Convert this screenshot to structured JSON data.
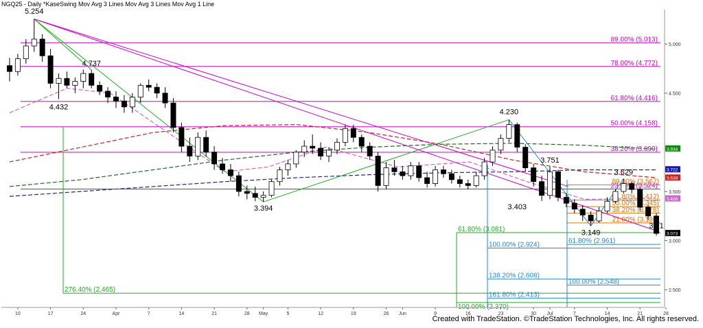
{
  "header": {
    "title": "NGQ25 - Daily  *KaseSwing  Mov Avg 3 Lines  Mov Avg 3 Lines  Mov Avg 1 Line"
  },
  "credit": "Created with TradeStation. ©TradeStation Technologies, Inc. All rights reserved.",
  "colors": {
    "up_candle": "#ffffff",
    "down_candle": "#000000",
    "fib_magenta": "#cc00cc",
    "fib_orange": "#e07000",
    "fib_green": "#22aa22",
    "fib_cyan": "#2288cc",
    "ma_red": "#cc2222",
    "ma_green": "#226622",
    "ma_blue": "#222288"
  },
  "chart_data": {
    "type": "candlestick",
    "ylim": [
      2.32,
      5.35
    ],
    "x_tick_labels": [
      "10",
      "17",
      "24",
      "Apr",
      "7",
      "14",
      "21",
      "28",
      "May",
      "5",
      "12",
      "19",
      "26",
      "Jun",
      "9",
      "16",
      "23",
      "30",
      "Jul",
      "7",
      "14",
      "21",
      "28"
    ],
    "price_axis_labels": [
      "5.000",
      "4.500",
      "3.500",
      "3.000",
      "2.500"
    ],
    "price_axis_values": [
      5.0,
      4.5,
      3.5,
      3.0,
      2.5
    ],
    "price_tags": [
      {
        "label": "3.934",
        "value": 3.934,
        "color": "#118811"
      },
      {
        "label": "3.722",
        "value": 3.722,
        "color": "#1a1aaa"
      },
      {
        "label": "3.638",
        "value": 3.638,
        "color": "#cc2222"
      },
      {
        "label": "3.426",
        "value": 3.426,
        "color": "#cc66cc"
      },
      {
        "label": "3.073",
        "value": 3.073,
        "color": "#000000"
      }
    ],
    "swing_labels": [
      {
        "text": "5.254",
        "value": 5.254
      },
      {
        "text": "4.737",
        "value": 4.737
      },
      {
        "text": "4.432",
        "value": 4.432
      },
      {
        "text": "3.394",
        "value": 3.394
      },
      {
        "text": "4.230",
        "value": 4.23
      },
      {
        "text": "3.751",
        "value": 3.751
      },
      {
        "text": "3.403",
        "value": 3.403
      },
      {
        "text": "3.149",
        "value": 3.149
      },
      {
        "text": "3.629",
        "value": 3.629
      },
      {
        "text": "3.21",
        "value": 3.21
      }
    ],
    "fib_levels_magenta": [
      {
        "label": "89.00% (5.013)",
        "value": 5.013
      },
      {
        "label": "78.00% (4.772)",
        "value": 4.772
      },
      {
        "label": "61.80% (4.416)",
        "value": 4.416
      },
      {
        "label": "50.00% (4.158)",
        "value": 4.158
      },
      {
        "label": "38.20% (3.899)",
        "value": 3.899
      },
      {
        "label": "23.60% (3.524)",
        "value": 3.524
      }
    ],
    "fib_levels_orange": [
      {
        "label": "89.00% (3.567)",
        "value": 3.567
      },
      {
        "label": "61.80% (3.412)",
        "value": 3.412
      },
      {
        "label": "50.00% (3.345)",
        "value": 3.345
      },
      {
        "label": "38.20% (3.278)",
        "value": 3.278
      },
      {
        "label": "21.00% (3.180)",
        "value": 3.18
      }
    ],
    "fib_levels_green": [
      {
        "label": "61.80% (3.081)",
        "value": 3.081
      },
      {
        "label": "276.40% (2.465)",
        "value": 2.465
      },
      {
        "label": "100.00% (2.370)",
        "value": 2.37
      }
    ],
    "fib_levels_cyan": [
      {
        "label": "100.00% (2.924)",
        "value": 2.924
      },
      {
        "label": "138.20% (2.608)",
        "value": 2.608
      },
      {
        "label": "161.80% (2.413)",
        "value": 2.413
      },
      {
        "label": "61.80% (2.961)",
        "value": 2.961
      },
      {
        "label": "100.00% (2.548)",
        "value": 2.548
      }
    ],
    "candles": [
      [
        4.78,
        4.86,
        4.62,
        4.72
      ],
      [
        4.72,
        4.9,
        4.68,
        4.85
      ],
      [
        4.85,
        5.05,
        4.8,
        4.98
      ],
      [
        4.98,
        5.254,
        4.92,
        5.05
      ],
      [
        5.05,
        5.1,
        4.82,
        4.88
      ],
      [
        4.88,
        4.95,
        4.55,
        4.6
      ],
      [
        4.6,
        4.7,
        4.44,
        4.65
      ],
      [
        4.65,
        4.72,
        4.55,
        4.58
      ],
      [
        4.58,
        4.66,
        4.5,
        4.62
      ],
      [
        4.62,
        4.74,
        4.55,
        4.7
      ],
      [
        4.7,
        4.737,
        4.55,
        4.58
      ],
      [
        4.58,
        4.62,
        4.48,
        4.52
      ],
      [
        4.52,
        4.56,
        4.4,
        4.46
      ],
      [
        4.46,
        4.52,
        4.35,
        4.42
      ],
      [
        4.42,
        4.48,
        4.3,
        4.36
      ],
      [
        4.36,
        4.5,
        4.3,
        4.46
      ],
      [
        4.46,
        4.6,
        4.4,
        4.58
      ],
      [
        4.58,
        4.64,
        4.52,
        4.56
      ],
      [
        4.56,
        4.6,
        4.45,
        4.5
      ],
      [
        4.5,
        4.56,
        4.35,
        4.4
      ],
      [
        4.4,
        4.45,
        4.1,
        4.15
      ],
      [
        4.15,
        4.2,
        3.9,
        3.96
      ],
      [
        3.96,
        4.05,
        3.8,
        3.86
      ],
      [
        3.86,
        4.1,
        3.82,
        4.05
      ],
      [
        4.05,
        4.12,
        3.85,
        3.9
      ],
      [
        3.9,
        3.96,
        3.72,
        3.78
      ],
      [
        3.78,
        3.84,
        3.68,
        3.72
      ],
      [
        3.72,
        3.78,
        3.6,
        3.66
      ],
      [
        3.66,
        3.7,
        3.45,
        3.5
      ],
      [
        3.5,
        3.56,
        3.42,
        3.48
      ],
      [
        3.48,
        3.55,
        3.4,
        3.44
      ],
      [
        3.44,
        3.5,
        3.394,
        3.46
      ],
      [
        3.46,
        3.62,
        3.44,
        3.6
      ],
      [
        3.6,
        3.75,
        3.56,
        3.72
      ],
      [
        3.72,
        3.82,
        3.66,
        3.78
      ],
      [
        3.78,
        3.92,
        3.74,
        3.9
      ],
      [
        3.9,
        4.02,
        3.85,
        3.96
      ],
      [
        3.96,
        4.08,
        3.88,
        3.94
      ],
      [
        3.94,
        4.0,
        3.82,
        3.86
      ],
      [
        3.86,
        3.95,
        3.8,
        3.92
      ],
      [
        3.92,
        4.04,
        3.88,
        4.0
      ],
      [
        4.0,
        4.18,
        3.96,
        4.14
      ],
      [
        4.14,
        4.18,
        4.0,
        4.05
      ],
      [
        4.05,
        4.08,
        3.9,
        3.96
      ],
      [
        3.96,
        4.0,
        3.82,
        3.86
      ],
      [
        3.86,
        3.9,
        3.5,
        3.56
      ],
      [
        3.56,
        3.8,
        3.52,
        3.74
      ],
      [
        3.74,
        3.82,
        3.66,
        3.7
      ],
      [
        3.7,
        3.76,
        3.62,
        3.66
      ],
      [
        3.66,
        3.8,
        3.62,
        3.76
      ],
      [
        3.76,
        3.8,
        3.6,
        3.64
      ],
      [
        3.64,
        3.7,
        3.54,
        3.58
      ],
      [
        3.58,
        3.76,
        3.55,
        3.72
      ],
      [
        3.72,
        3.76,
        3.64,
        3.68
      ],
      [
        3.68,
        3.72,
        3.58,
        3.62
      ],
      [
        3.62,
        3.66,
        3.54,
        3.58
      ],
      [
        3.58,
        3.62,
        3.52,
        3.56
      ],
      [
        3.56,
        3.7,
        3.54,
        3.66
      ],
      [
        3.66,
        3.84,
        3.62,
        3.8
      ],
      [
        3.8,
        3.96,
        3.76,
        3.92
      ],
      [
        3.92,
        4.08,
        3.88,
        4.04
      ],
      [
        4.04,
        4.23,
        4.0,
        4.18
      ],
      [
        4.18,
        4.2,
        3.9,
        3.95
      ],
      [
        3.95,
        3.98,
        3.7,
        3.74
      ],
      [
        3.74,
        3.78,
        3.55,
        3.6
      ],
      [
        3.6,
        3.66,
        3.403,
        3.46
      ],
      [
        3.46,
        3.751,
        3.42,
        3.7
      ],
      [
        3.7,
        3.72,
        3.4,
        3.44
      ],
      [
        3.44,
        3.48,
        3.34,
        3.38
      ],
      [
        3.38,
        3.42,
        3.28,
        3.32
      ],
      [
        3.32,
        3.36,
        3.2,
        3.26
      ],
      [
        3.26,
        3.3,
        3.149,
        3.2
      ],
      [
        3.2,
        3.34,
        3.18,
        3.3
      ],
      [
        3.3,
        3.44,
        3.28,
        3.4
      ],
      [
        3.4,
        3.52,
        3.38,
        3.5
      ],
      [
        3.5,
        3.629,
        3.48,
        3.58
      ],
      [
        3.58,
        3.6,
        3.48,
        3.52
      ],
      [
        3.52,
        3.54,
        3.3,
        3.34
      ],
      [
        3.34,
        3.36,
        3.21,
        3.25
      ],
      [
        3.25,
        3.28,
        3.05,
        3.073
      ]
    ],
    "ma_lines": [
      {
        "name": "MA red",
        "color": "#cc2222",
        "values": [
          [
            0,
            3.8
          ],
          [
            10,
            3.95
          ],
          [
            20,
            4.1
          ],
          [
            30,
            4.17
          ],
          [
            40,
            4.18
          ],
          [
            50,
            4.1
          ],
          [
            60,
            3.98
          ],
          [
            70,
            3.82
          ],
          [
            80,
            3.7
          ],
          [
            90,
            3.64
          ]
        ]
      },
      {
        "name": "MA green",
        "color": "#226622",
        "values": [
          [
            0,
            3.55
          ],
          [
            10,
            3.62
          ],
          [
            20,
            3.72
          ],
          [
            30,
            3.82
          ],
          [
            40,
            3.9
          ],
          [
            50,
            3.95
          ],
          [
            60,
            3.98
          ],
          [
            70,
            3.99
          ],
          [
            80,
            3.97
          ],
          [
            90,
            3.93
          ]
        ]
      },
      {
        "name": "MA blue",
        "color": "#222288",
        "values": [
          [
            0,
            3.45
          ],
          [
            10,
            3.5
          ],
          [
            20,
            3.55
          ],
          [
            30,
            3.6
          ],
          [
            40,
            3.64
          ],
          [
            50,
            3.67
          ],
          [
            60,
            3.69
          ],
          [
            70,
            3.7
          ],
          [
            80,
            3.72
          ],
          [
            90,
            3.72
          ]
        ]
      },
      {
        "name": "MA pink",
        "color": "#cc66cc",
        "values": [
          [
            0,
            4.3
          ],
          [
            8,
            4.55
          ],
          [
            14,
            4.5
          ],
          [
            22,
            4.1
          ],
          [
            30,
            3.7
          ],
          [
            36,
            3.75
          ],
          [
            44,
            3.95
          ],
          [
            54,
            3.75
          ],
          [
            64,
            3.8
          ],
          [
            72,
            3.6
          ],
          [
            80,
            3.42
          ],
          [
            90,
            3.43
          ]
        ]
      }
    ]
  }
}
